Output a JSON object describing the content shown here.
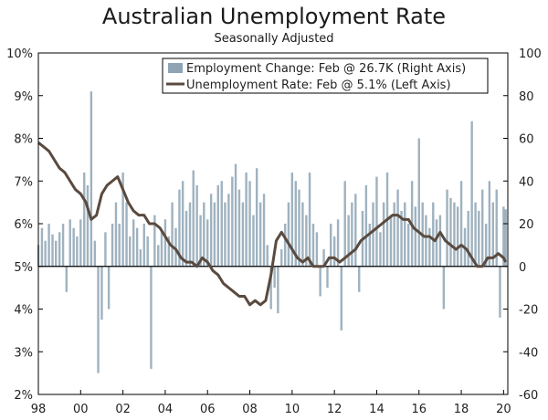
{
  "chart_data": {
    "type": "bar+line",
    "title": "Australian Unemployment Rate",
    "subtitle": "Seasonally Adjusted",
    "x_range": [
      1998,
      2020.2
    ],
    "x_ticks": [
      {
        "value": 1998,
        "label": "98"
      },
      {
        "value": 2000,
        "label": "00"
      },
      {
        "value": 2002,
        "label": "02"
      },
      {
        "value": 2004,
        "label": "04"
      },
      {
        "value": 2006,
        "label": "06"
      },
      {
        "value": 2008,
        "label": "08"
      },
      {
        "value": 2010,
        "label": "10"
      },
      {
        "value": 2012,
        "label": "12"
      },
      {
        "value": 2014,
        "label": "14"
      },
      {
        "value": 2016,
        "label": "16"
      },
      {
        "value": 2018,
        "label": "18"
      },
      {
        "value": 2020,
        "label": "20"
      }
    ],
    "left_axis": {
      "ylim": [
        2,
        10
      ],
      "ticks": [
        {
          "value": 2,
          "label": "2%"
        },
        {
          "value": 3,
          "label": "3%"
        },
        {
          "value": 4,
          "label": "4%"
        },
        {
          "value": 5,
          "label": "5%"
        },
        {
          "value": 6,
          "label": "6%"
        },
        {
          "value": 7,
          "label": "7%"
        },
        {
          "value": 8,
          "label": "8%"
        },
        {
          "value": 9,
          "label": "9%"
        },
        {
          "value": 10,
          "label": "10%"
        }
      ]
    },
    "right_axis": {
      "ylim": [
        -60,
        100
      ],
      "ticks": [
        {
          "value": -60,
          "label": "-60"
        },
        {
          "value": -40,
          "label": "-40"
        },
        {
          "value": -20,
          "label": "-20"
        },
        {
          "value": 0,
          "label": "0"
        },
        {
          "value": 20,
          "label": "20"
        },
        {
          "value": 40,
          "label": "40"
        },
        {
          "value": 60,
          "label": "60"
        },
        {
          "value": 80,
          "label": "80"
        },
        {
          "value": 100,
          "label": "100"
        }
      ]
    },
    "legend": {
      "placement": "top-right",
      "entries": [
        {
          "label": "Employment Change: Feb @ 26.7K (Right Axis)",
          "kind": "bar",
          "color": "#8ea4b4"
        },
        {
          "label": "Unemployment Rate: Feb @ 5.1% (Left Axis)",
          "kind": "line",
          "color": "#5a4a3f"
        }
      ]
    },
    "series": [
      {
        "kind": "line",
        "axis": "left",
        "color": "#5a4a3f",
        "points": [
          [
            1998.0,
            7.9
          ],
          [
            1998.25,
            7.8
          ],
          [
            1998.5,
            7.7
          ],
          [
            1998.75,
            7.5
          ],
          [
            1999.0,
            7.3
          ],
          [
            1999.25,
            7.2
          ],
          [
            1999.5,
            7.0
          ],
          [
            1999.75,
            6.8
          ],
          [
            2000.0,
            6.7
          ],
          [
            2000.25,
            6.5
          ],
          [
            2000.5,
            6.1
          ],
          [
            2000.75,
            6.2
          ],
          [
            2001.0,
            6.7
          ],
          [
            2001.25,
            6.9
          ],
          [
            2001.5,
            7.0
          ],
          [
            2001.75,
            7.1
          ],
          [
            2002.0,
            6.8
          ],
          [
            2002.25,
            6.5
          ],
          [
            2002.5,
            6.3
          ],
          [
            2002.75,
            6.2
          ],
          [
            2003.0,
            6.2
          ],
          [
            2003.25,
            6.0
          ],
          [
            2003.5,
            6.0
          ],
          [
            2003.75,
            5.9
          ],
          [
            2004.0,
            5.7
          ],
          [
            2004.25,
            5.5
          ],
          [
            2004.5,
            5.4
          ],
          [
            2004.75,
            5.2
          ],
          [
            2005.0,
            5.1
          ],
          [
            2005.25,
            5.1
          ],
          [
            2005.5,
            5.0
          ],
          [
            2005.75,
            5.2
          ],
          [
            2006.0,
            5.1
          ],
          [
            2006.25,
            4.9
          ],
          [
            2006.5,
            4.8
          ],
          [
            2006.75,
            4.6
          ],
          [
            2007.0,
            4.5
          ],
          [
            2007.25,
            4.4
          ],
          [
            2007.5,
            4.3
          ],
          [
            2007.75,
            4.3
          ],
          [
            2008.0,
            4.1
          ],
          [
            2008.25,
            4.2
          ],
          [
            2008.5,
            4.1
          ],
          [
            2008.75,
            4.2
          ],
          [
            2009.0,
            4.8
          ],
          [
            2009.25,
            5.6
          ],
          [
            2009.5,
            5.8
          ],
          [
            2009.75,
            5.6
          ],
          [
            2010.0,
            5.4
          ],
          [
            2010.25,
            5.2
          ],
          [
            2010.5,
            5.1
          ],
          [
            2010.75,
            5.2
          ],
          [
            2011.0,
            5.0
          ],
          [
            2011.25,
            5.0
          ],
          [
            2011.5,
            5.0
          ],
          [
            2011.75,
            5.2
          ],
          [
            2012.0,
            5.2
          ],
          [
            2012.25,
            5.1
          ],
          [
            2012.5,
            5.2
          ],
          [
            2012.75,
            5.3
          ],
          [
            2013.0,
            5.4
          ],
          [
            2013.25,
            5.6
          ],
          [
            2013.5,
            5.7
          ],
          [
            2013.75,
            5.8
          ],
          [
            2014.0,
            5.9
          ],
          [
            2014.25,
            6.0
          ],
          [
            2014.5,
            6.1
          ],
          [
            2014.75,
            6.2
          ],
          [
            2015.0,
            6.2
          ],
          [
            2015.25,
            6.1
          ],
          [
            2015.5,
            6.1
          ],
          [
            2015.75,
            5.9
          ],
          [
            2016.0,
            5.8
          ],
          [
            2016.25,
            5.7
          ],
          [
            2016.5,
            5.7
          ],
          [
            2016.75,
            5.6
          ],
          [
            2017.0,
            5.8
          ],
          [
            2017.25,
            5.6
          ],
          [
            2017.5,
            5.5
          ],
          [
            2017.75,
            5.4
          ],
          [
            2018.0,
            5.5
          ],
          [
            2018.25,
            5.4
          ],
          [
            2018.5,
            5.2
          ],
          [
            2018.75,
            5.0
          ],
          [
            2019.0,
            5.0
          ],
          [
            2019.25,
            5.2
          ],
          [
            2019.5,
            5.2
          ],
          [
            2019.75,
            5.3
          ],
          [
            2020.0,
            5.2
          ],
          [
            2020.1,
            5.1
          ]
        ]
      },
      {
        "kind": "bar",
        "axis": "right",
        "color": "#8ea4b4",
        "points": [
          [
            1998.0,
            10
          ],
          [
            1998.17,
            18
          ],
          [
            1998.33,
            12
          ],
          [
            1998.5,
            20
          ],
          [
            1998.67,
            15
          ],
          [
            1998.83,
            12
          ],
          [
            1999.0,
            16
          ],
          [
            1999.17,
            20
          ],
          [
            1999.33,
            -12
          ],
          [
            1999.5,
            22
          ],
          [
            1999.67,
            18
          ],
          [
            1999.83,
            14
          ],
          [
            2000.0,
            22
          ],
          [
            2000.17,
            44
          ],
          [
            2000.33,
            38
          ],
          [
            2000.5,
            82
          ],
          [
            2000.67,
            12
          ],
          [
            2000.83,
            -50
          ],
          [
            2001.0,
            -25
          ],
          [
            2001.17,
            16
          ],
          [
            2001.33,
            -20
          ],
          [
            2001.5,
            20
          ],
          [
            2001.67,
            30
          ],
          [
            2001.83,
            20
          ],
          [
            2002.0,
            44
          ],
          [
            2002.17,
            30
          ],
          [
            2002.33,
            14
          ],
          [
            2002.5,
            22
          ],
          [
            2002.67,
            18
          ],
          [
            2002.83,
            8
          ],
          [
            2003.0,
            20
          ],
          [
            2003.17,
            14
          ],
          [
            2003.33,
            -48
          ],
          [
            2003.5,
            24
          ],
          [
            2003.67,
            10
          ],
          [
            2003.83,
            16
          ],
          [
            2004.0,
            22
          ],
          [
            2004.17,
            14
          ],
          [
            2004.33,
            30
          ],
          [
            2004.5,
            18
          ],
          [
            2004.67,
            36
          ],
          [
            2004.83,
            40
          ],
          [
            2005.0,
            26
          ],
          [
            2005.17,
            30
          ],
          [
            2005.33,
            45
          ],
          [
            2005.5,
            38
          ],
          [
            2005.67,
            24
          ],
          [
            2005.83,
            30
          ],
          [
            2006.0,
            22
          ],
          [
            2006.17,
            34
          ],
          [
            2006.33,
            30
          ],
          [
            2006.5,
            38
          ],
          [
            2006.67,
            40
          ],
          [
            2006.83,
            30
          ],
          [
            2007.0,
            34
          ],
          [
            2007.17,
            42
          ],
          [
            2007.33,
            48
          ],
          [
            2007.5,
            36
          ],
          [
            2007.67,
            30
          ],
          [
            2007.83,
            44
          ],
          [
            2008.0,
            40
          ],
          [
            2008.17,
            24
          ],
          [
            2008.33,
            46
          ],
          [
            2008.5,
            30
          ],
          [
            2008.67,
            34
          ],
          [
            2008.83,
            10
          ],
          [
            2009.0,
            -20
          ],
          [
            2009.17,
            -10
          ],
          [
            2009.33,
            -22
          ],
          [
            2009.5,
            8
          ],
          [
            2009.67,
            20
          ],
          [
            2009.83,
            30
          ],
          [
            2010.0,
            44
          ],
          [
            2010.17,
            40
          ],
          [
            2010.33,
            36
          ],
          [
            2010.5,
            30
          ],
          [
            2010.67,
            24
          ],
          [
            2010.83,
            44
          ],
          [
            2011.0,
            20
          ],
          [
            2011.17,
            16
          ],
          [
            2011.33,
            -14
          ],
          [
            2011.5,
            8
          ],
          [
            2011.67,
            -10
          ],
          [
            2011.83,
            20
          ],
          [
            2012.0,
            14
          ],
          [
            2012.17,
            22
          ],
          [
            2012.33,
            -30
          ],
          [
            2012.5,
            40
          ],
          [
            2012.67,
            24
          ],
          [
            2012.83,
            30
          ],
          [
            2013.0,
            34
          ],
          [
            2013.17,
            -12
          ],
          [
            2013.33,
            26
          ],
          [
            2013.5,
            38
          ],
          [
            2013.67,
            20
          ],
          [
            2013.83,
            30
          ],
          [
            2014.0,
            42
          ],
          [
            2014.17,
            16
          ],
          [
            2014.33,
            30
          ],
          [
            2014.5,
            44
          ],
          [
            2014.67,
            24
          ],
          [
            2014.83,
            30
          ],
          [
            2015.0,
            36
          ],
          [
            2015.17,
            26
          ],
          [
            2015.33,
            30
          ],
          [
            2015.5,
            20
          ],
          [
            2015.67,
            40
          ],
          [
            2015.83,
            28
          ],
          [
            2016.0,
            60
          ],
          [
            2016.17,
            30
          ],
          [
            2016.33,
            24
          ],
          [
            2016.5,
            18
          ],
          [
            2016.67,
            30
          ],
          [
            2016.83,
            22
          ],
          [
            2017.0,
            24
          ],
          [
            2017.17,
            -20
          ],
          [
            2017.33,
            36
          ],
          [
            2017.5,
            32
          ],
          [
            2017.67,
            30
          ],
          [
            2017.83,
            28
          ],
          [
            2018.0,
            40
          ],
          [
            2018.17,
            18
          ],
          [
            2018.33,
            26
          ],
          [
            2018.5,
            68
          ],
          [
            2018.67,
            30
          ],
          [
            2018.83,
            26
          ],
          [
            2019.0,
            36
          ],
          [
            2019.17,
            20
          ],
          [
            2019.33,
            40
          ],
          [
            2019.5,
            30
          ],
          [
            2019.67,
            36
          ],
          [
            2019.83,
            -24
          ],
          [
            2020.0,
            28
          ],
          [
            2020.1,
            26.7
          ]
        ]
      }
    ]
  }
}
